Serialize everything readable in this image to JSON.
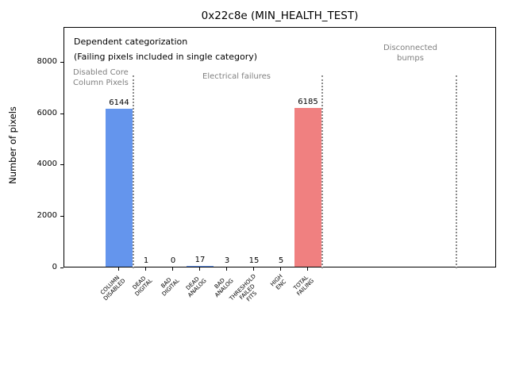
{
  "figure": {
    "background": "#ffffff"
  },
  "chart_data": {
    "type": "bar",
    "title": "0x22c8e (MIN_HEALTH_TEST)",
    "xlabel": "",
    "ylabel": "Number of pixels",
    "categories": [
      "COLUMN\nDISABLED",
      "DEAD\nDIGITAL",
      "BAD\nDIGITAL",
      "DEAD\nANALOG",
      "BAD\nANALOG",
      "THRESHOLD\nFAILED\nFITS",
      "HIGH\nENC",
      "TOTAL\nFAILING"
    ],
    "values": [
      6144,
      1,
      0,
      17,
      3,
      15,
      5,
      6185
    ],
    "value_labels": [
      "6144",
      "1",
      "0",
      "17",
      "3",
      "15",
      "5",
      "6185"
    ],
    "bar_colors": [
      "#6495ed",
      "#6495ed",
      "#6495ed",
      "#6495ed",
      "#6495ed",
      "#6495ed",
      "#6495ed",
      "#f08080"
    ],
    "yticks": [
      0,
      2000,
      4000,
      6000,
      8000
    ],
    "ylim": [
      0,
      9350
    ],
    "grid": false,
    "legend": null,
    "annotations": [
      {
        "text": "Dependent categorization\n(Failing pixels included in single category)",
        "color": "#000000"
      },
      {
        "text": "Disabled Core\nColumn Pixels",
        "color": "#808080"
      },
      {
        "text": "Electrical failures",
        "color": "#808080"
      },
      {
        "text": "Disconnected\nbumps",
        "color": "#808080"
      }
    ],
    "group_separators": {
      "style": "dotted",
      "color": "#8a8a8a",
      "positions_between_categories": [
        0.5,
        7.5,
        12.5
      ]
    }
  }
}
